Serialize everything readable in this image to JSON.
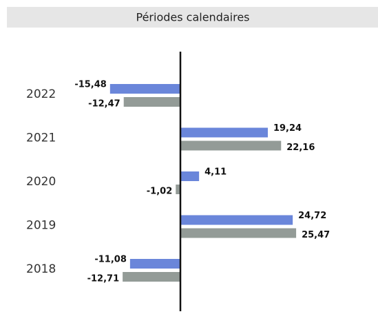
{
  "chart_data": {
    "type": "hbar",
    "title": "Périodes calendaires",
    "categories": [
      "2022",
      "2021",
      "2020",
      "2019",
      "2018"
    ],
    "series": [
      {
        "color": "#6a86da",
        "values": [
          -15.48,
          19.24,
          4.11,
          24.72,
          -11.08
        ],
        "value_labels": [
          "-15,48",
          "19,24",
          "4,11",
          "24,72",
          "-11,08"
        ]
      },
      {
        "color": "#939b97",
        "values": [
          -12.47,
          22.16,
          -1.02,
          25.47,
          -12.71
        ],
        "value_labels": [
          "-12,47",
          "22,16",
          "-1,02",
          "25,47",
          "-12,71"
        ]
      }
    ],
    "xlim": [
      -20,
      30
    ]
  }
}
